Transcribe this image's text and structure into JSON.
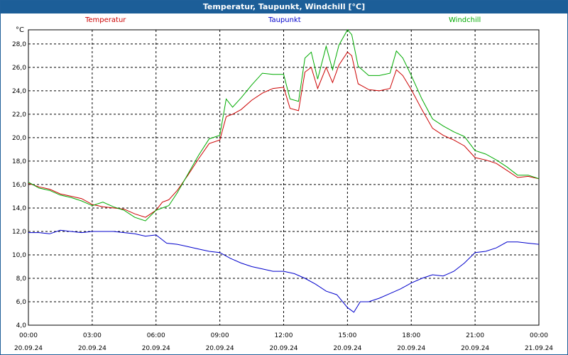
{
  "window": {
    "title": "Temperatur, Taupunkt, Windchill [°C]"
  },
  "chart_data": {
    "type": "line",
    "title": "Temperatur, Taupunkt, Windchill [°C]",
    "ylabel": "°C",
    "ylim": [
      4,
      30
    ],
    "xlim": [
      0,
      24
    ],
    "grid": true,
    "legend": "top",
    "x_tick_labels": [
      {
        "time": "00:00",
        "date": "20.09.24"
      },
      {
        "time": "03:00",
        "date": "20.09.24"
      },
      {
        "time": "06:00",
        "date": "20.09.24"
      },
      {
        "time": "09:00",
        "date": "20.09.24"
      },
      {
        "time": "12:00",
        "date": "20.09.24"
      },
      {
        "time": "15:00",
        "date": "20.09.24"
      },
      {
        "time": "18:00",
        "date": "20.09.24"
      },
      {
        "time": "21:00",
        "date": "20.09.24"
      },
      {
        "time": "00:00",
        "date": "21.09.24"
      }
    ],
    "y_ticks": [
      4,
      6,
      8,
      10,
      12,
      14,
      16,
      18,
      20,
      22,
      24,
      26,
      28
    ],
    "y_tick_labels": [
      "4,0",
      "6,0",
      "8,0",
      "10,0",
      "12,0",
      "14,0",
      "16,0",
      "18,0",
      "20,0",
      "22,0",
      "24,0",
      "26,0",
      "28,0"
    ],
    "series": [
      {
        "name": "Temperatur",
        "color": "#cc0000",
        "x": [
          0,
          0.5,
          1,
          1.5,
          2,
          2.5,
          3,
          3.5,
          4,
          4.5,
          5,
          5.5,
          6,
          6.3,
          6.6,
          7,
          7.5,
          8,
          8.5,
          9,
          9.3,
          9.6,
          10,
          10.5,
          11,
          11.5,
          12,
          12.3,
          12.7,
          13,
          13.3,
          13.6,
          14,
          14.3,
          14.6,
          15,
          15.2,
          15.5,
          16,
          16.5,
          17,
          17.3,
          17.6,
          18,
          18.5,
          19,
          19.5,
          20,
          20.5,
          21,
          21.5,
          22,
          22.5,
          23,
          23.5,
          24
        ],
        "values": [
          16.1,
          15.8,
          15.6,
          15.2,
          15,
          14.8,
          14.3,
          14.1,
          14,
          13.9,
          13.5,
          13.2,
          13.8,
          14.5,
          14.7,
          15.5,
          16.8,
          18.2,
          19.5,
          19.8,
          21.8,
          22,
          22.4,
          23.2,
          23.8,
          24.2,
          24.3,
          22.5,
          22.3,
          25.6,
          26,
          24.2,
          26,
          24.7,
          26.2,
          27.3,
          27,
          24.6,
          24.1,
          24,
          24.2,
          25.8,
          25.3,
          24.1,
          22.4,
          20.8,
          20.2,
          19.8,
          19.3,
          18.3,
          18.1,
          17.8,
          17.2,
          16.6,
          16.7,
          16.5
        ]
      },
      {
        "name": "Taupunkt",
        "color": "#0000cc",
        "x": [
          0,
          0.5,
          1,
          1.5,
          2,
          2.5,
          3,
          3.5,
          4,
          4.5,
          5,
          5.5,
          6,
          6.5,
          7,
          7.5,
          8,
          8.5,
          9,
          9.5,
          10,
          10.5,
          11,
          11.5,
          12,
          12.5,
          13,
          13.5,
          14,
          14.5,
          15,
          15.3,
          15.6,
          16,
          16.5,
          17,
          17.5,
          18,
          18.5,
          19,
          19.5,
          20,
          20.5,
          21,
          21.5,
          22,
          22.5,
          23,
          23.5,
          24
        ],
        "values": [
          11.9,
          11.9,
          11.8,
          12.1,
          12,
          11.9,
          12,
          12,
          12,
          11.9,
          11.8,
          11.6,
          11.7,
          11,
          10.9,
          10.7,
          10.5,
          10.3,
          10.2,
          9.7,
          9.3,
          9,
          8.8,
          8.6,
          8.6,
          8.4,
          8,
          7.5,
          6.9,
          6.6,
          5.5,
          5.1,
          6,
          6,
          6.3,
          6.7,
          7.1,
          7.6,
          8,
          8.3,
          8.2,
          8.6,
          9.3,
          10.2,
          10.3,
          10.6,
          11.1,
          11.1,
          11,
          10.9
        ]
      },
      {
        "name": "Windchill",
        "color": "#00aa00",
        "x": [
          0,
          0.5,
          1,
          1.5,
          2,
          2.5,
          3,
          3.5,
          4,
          4.5,
          5,
          5.5,
          6,
          6.3,
          6.6,
          7,
          7.5,
          8,
          8.5,
          9,
          9.3,
          9.6,
          10,
          10.5,
          11,
          11.5,
          12,
          12.3,
          12.7,
          13,
          13.3,
          13.6,
          14,
          14.3,
          14.6,
          15,
          15.2,
          15.5,
          16,
          16.5,
          17,
          17.3,
          17.6,
          18,
          18.5,
          19,
          19.5,
          20,
          20.5,
          21,
          21.5,
          22,
          22.5,
          23,
          23.5,
          24
        ],
        "values": [
          16.2,
          15.7,
          15.5,
          15.1,
          14.9,
          14.6,
          14.2,
          14.5,
          14.1,
          13.8,
          13.2,
          12.9,
          13.8,
          14,
          14.2,
          15.3,
          16.9,
          18.5,
          19.9,
          20.2,
          23.3,
          22.6,
          23.4,
          24.5,
          25.5,
          25.4,
          25.4,
          23.3,
          23.1,
          26.8,
          27.3,
          25,
          27.8,
          25.8,
          27.9,
          29.2,
          28.8,
          26.1,
          25.3,
          25.3,
          25.5,
          27.4,
          26.8,
          25.3,
          23.3,
          21.6,
          21,
          20.5,
          20.1,
          18.9,
          18.6,
          18.1,
          17.5,
          16.8,
          16.8,
          16.5
        ]
      }
    ]
  }
}
